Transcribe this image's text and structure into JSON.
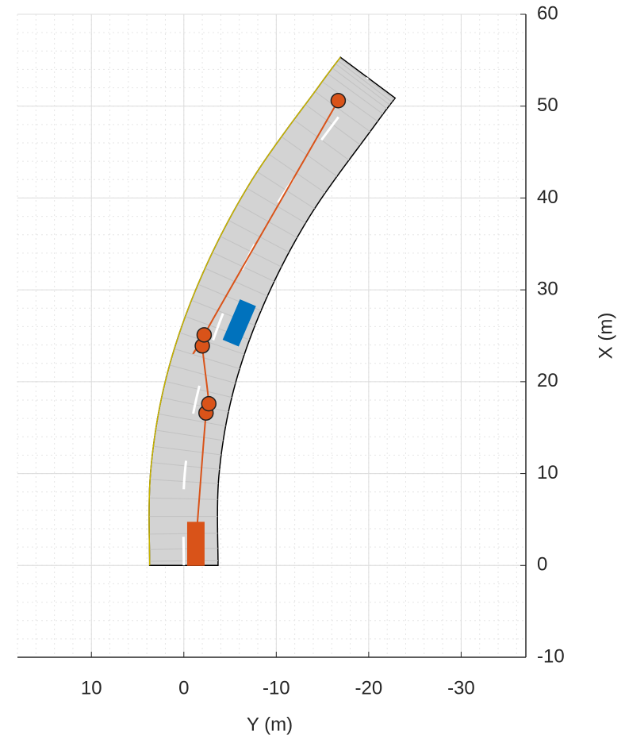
{
  "chart_data": {
    "type": "scenario",
    "xlabel": "Y (m)",
    "ylabel": "X (m)",
    "xlim": [
      18,
      -37
    ],
    "ylim": [
      -10,
      60
    ],
    "xticks": [
      10,
      0,
      -10,
      -20,
      -30
    ],
    "yticks": [
      -10,
      0,
      10,
      20,
      30,
      40,
      50,
      60
    ],
    "grid": true,
    "minor_step": 2,
    "road": {
      "x": [
        0,
        -0.1,
        -1.8,
        -5.3,
        -10.5,
        -17.6,
        -19.9
      ],
      "y": [
        0,
        10,
        20,
        30,
        40,
        50,
        53.1
      ],
      "width": 7.4,
      "color": "#d3d3d3"
    },
    "trajectory": {
      "x": [
        -1.3,
        -2.4,
        -2.7,
        -2.0,
        -2.2,
        -16.7
      ],
      "y": [
        2.4,
        16.6,
        17.6,
        23.9,
        25.1,
        50.6
      ],
      "color": "#d95319"
    },
    "vehicles": [
      {
        "x": -1.3,
        "y": 2.35,
        "length": 4.7,
        "width": 1.8,
        "heading": 0,
        "color": "#d95319"
      },
      {
        "x": -6.0,
        "y": 26.4,
        "length": 4.7,
        "width": 1.8,
        "heading": 23,
        "color": "#0072bd"
      }
    ]
  }
}
